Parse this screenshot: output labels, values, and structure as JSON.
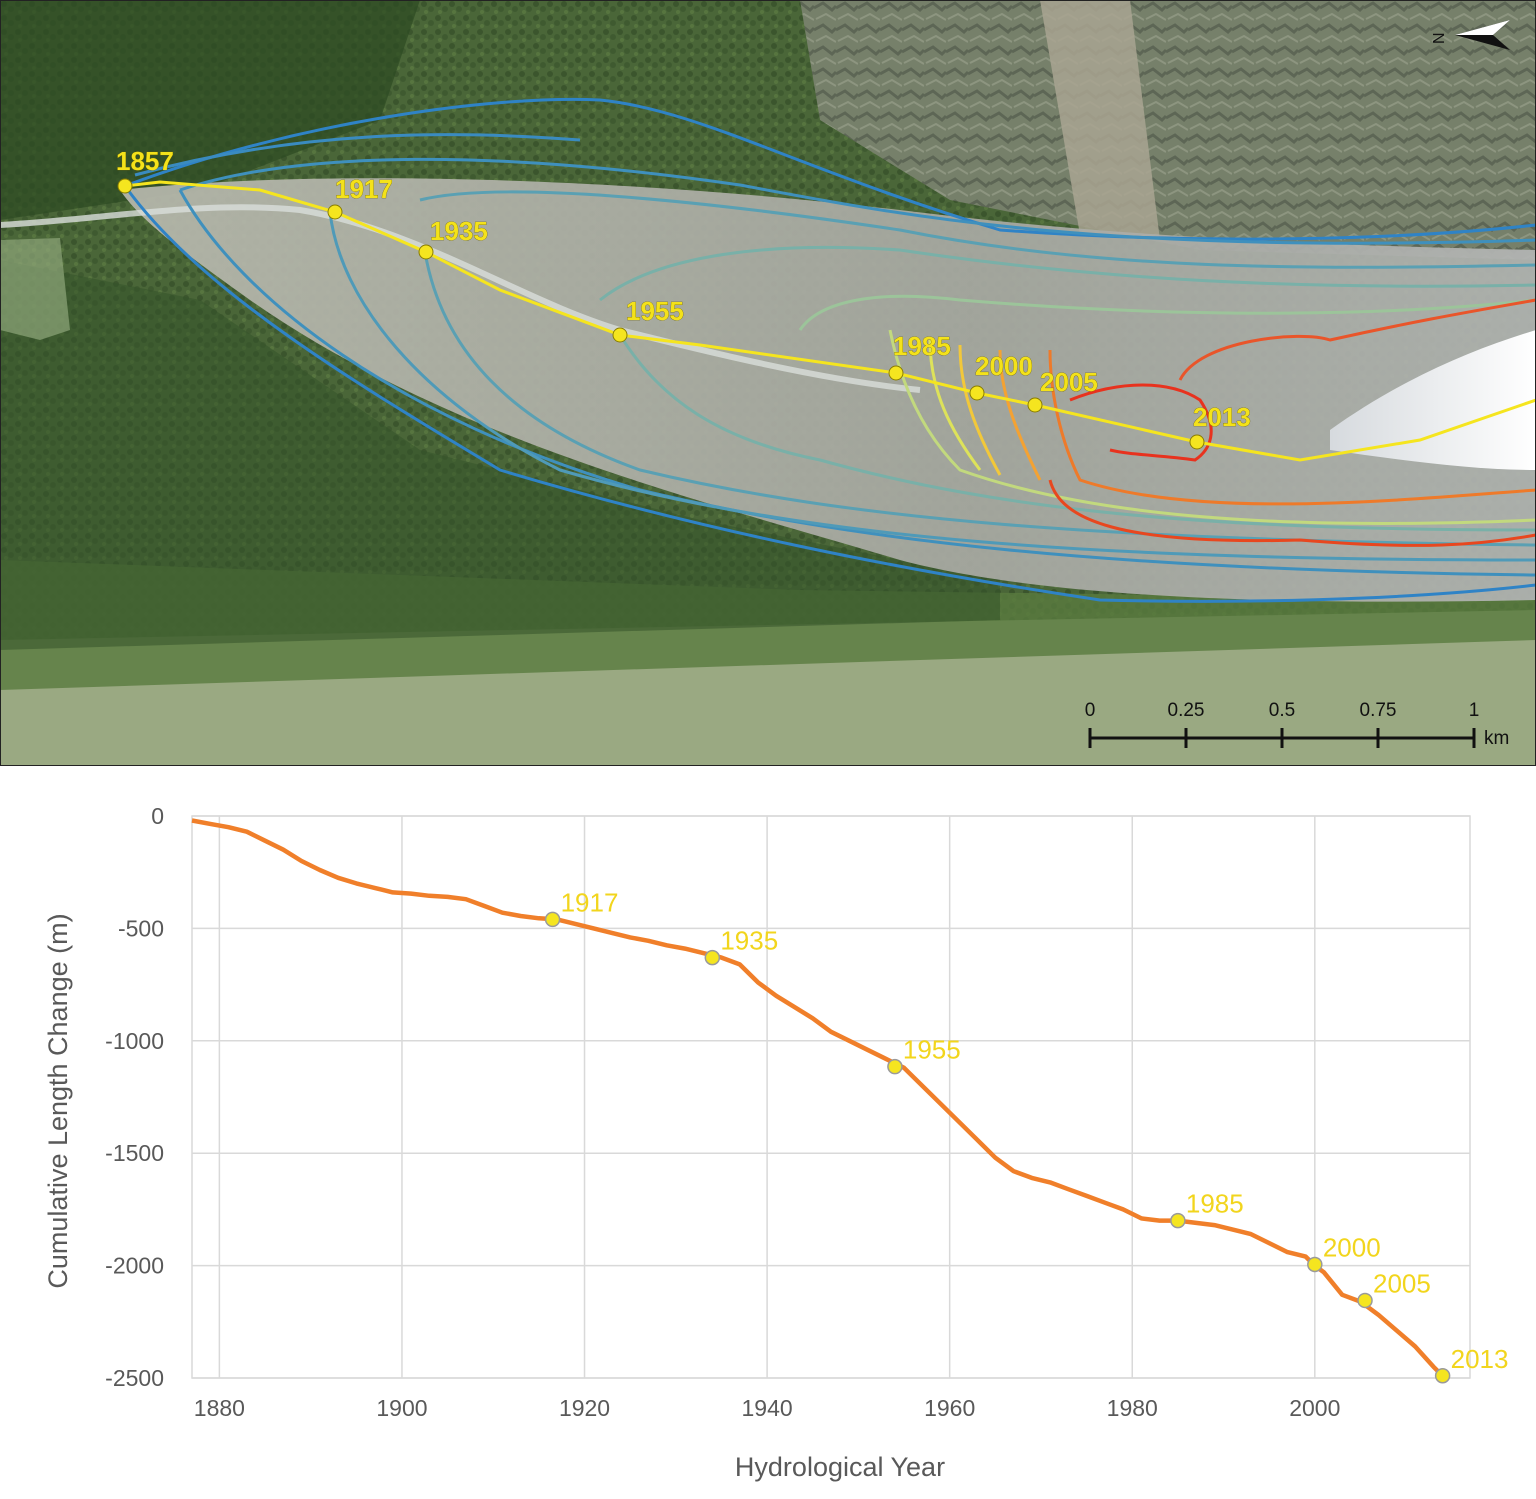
{
  "map": {
    "markers": [
      {
        "year": "1857"
      },
      {
        "year": "1917"
      },
      {
        "year": "1935"
      },
      {
        "year": "1955"
      },
      {
        "year": "1985"
      },
      {
        "year": "2000"
      },
      {
        "year": "2005"
      },
      {
        "year": "2013"
      }
    ],
    "north_label": "N",
    "scale_bar": {
      "ticks": [
        "0",
        "0.25",
        "0.5",
        "0.75",
        "1"
      ],
      "unit": "km"
    },
    "colors": {
      "oldest_outline": "#2f83c6",
      "newest_outline": "#e8321e",
      "centerline": "#f5e51f"
    }
  },
  "chart_data": {
    "type": "line",
    "xlabel": "Hydrological Year",
    "ylabel": "Cumulative Length Change (m)",
    "xlim": [
      1877,
      2017
    ],
    "ylim": [
      -2500,
      0
    ],
    "xticks": [
      "1880",
      "1900",
      "1920",
      "1940",
      "1960",
      "1980",
      "2000"
    ],
    "yticks": [
      "0",
      "-500",
      "-1000",
      "-1500",
      "-2000",
      "-2500"
    ],
    "grid": true,
    "line_color": "#f07f2a",
    "marker_color": "#f5e51f",
    "series": [
      {
        "x": [
          1877,
          1879,
          1881,
          1883,
          1885,
          1887,
          1889,
          1891,
          1893,
          1895,
          1897,
          1899,
          1901,
          1903,
          1905,
          1907,
          1909,
          1911,
          1913,
          1915,
          1917,
          1919,
          1921,
          1923,
          1925,
          1927,
          1929,
          1931,
          1933,
          1935,
          1937,
          1939,
          1941,
          1943,
          1945,
          1947,
          1949,
          1951,
          1953,
          1955,
          1957,
          1959,
          1961,
          1963,
          1965,
          1967,
          1969,
          1971,
          1973,
          1975,
          1977,
          1979,
          1981,
          1983,
          1985,
          1987,
          1989,
          1991,
          1993,
          1995,
          1997,
          1999,
          2000,
          2001,
          2003,
          2005,
          2007,
          2009,
          2011,
          2013,
          2014
        ],
        "y": [
          -20,
          -35,
          -50,
          -70,
          -110,
          -150,
          -200,
          -240,
          -275,
          -300,
          -320,
          -340,
          -345,
          -355,
          -360,
          -370,
          -400,
          -430,
          -445,
          -455,
          -460,
          -480,
          -500,
          -520,
          -540,
          -555,
          -575,
          -590,
          -610,
          -630,
          -660,
          -740,
          -800,
          -850,
          -900,
          -960,
          -1000,
          -1040,
          -1080,
          -1120,
          -1200,
          -1280,
          -1360,
          -1440,
          -1520,
          -1580,
          -1610,
          -1630,
          -1660,
          -1690,
          -1720,
          -1750,
          -1790,
          -1800,
          -1800,
          -1810,
          -1820,
          -1840,
          -1860,
          -1900,
          -1940,
          -1960,
          -2000,
          -2030,
          -2130,
          -2160,
          -2220,
          -2290,
          -2360,
          -2450,
          -2490
        ]
      }
    ],
    "points": [
      {
        "year": 1916.5,
        "value": -460,
        "label": "1917"
      },
      {
        "year": 1934,
        "value": -630,
        "label": "1935"
      },
      {
        "year": 1954,
        "value": -1115,
        "label": "1955"
      },
      {
        "year": 1985,
        "value": -1800,
        "label": "1985"
      },
      {
        "year": 2000,
        "value": -1995,
        "label": "2000"
      },
      {
        "year": 2005.5,
        "value": -2155,
        "label": "2005"
      },
      {
        "year": 2014,
        "value": -2490,
        "label": "2013"
      }
    ]
  }
}
